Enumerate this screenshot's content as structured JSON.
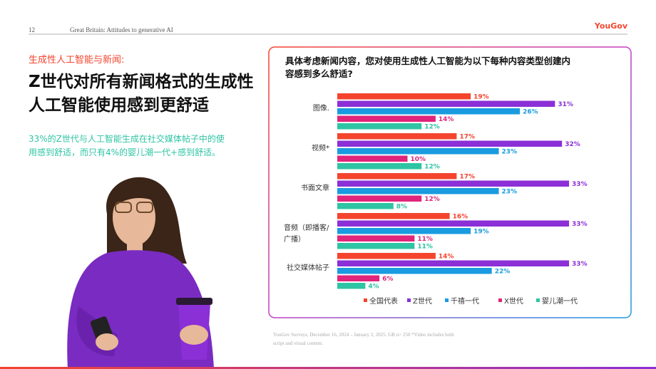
{
  "header": {
    "page": "12",
    "section": "Great Britain: Attitudes to generative AI",
    "logo": "YouGov"
  },
  "left": {
    "kicker": "生成性人工智能与新闻:",
    "title_lines": [
      "Z世代对所有新闻格式的生成性",
      "人工智能使用感到更舒适"
    ],
    "body_lines": [
      "33%的Z世代与人工智能生成在社交媒体帖子中的使",
      "用感到舒适，而只有4%的婴儿潮一代+感到舒适。"
    ]
  },
  "footnote": "YouGov Surveys, December 16, 2024 – January 2, 2025. GB n> 250 *Video includes both script and visual content.",
  "chart_data": {
    "type": "hbar",
    "title_lines": [
      "具体考虑新闻内容，您对使用生成性人工智能为以下每种内容类型创建内",
      "容感到多么舒适?"
    ],
    "categories": [
      "图像.",
      "视频*",
      "书面文章",
      "音频（即播客/广播）",
      "社交媒体帖子"
    ],
    "series": [
      {
        "name": "全国代表",
        "color": "#f4442e",
        "values": [
          19,
          17,
          17,
          16,
          14
        ],
        "value_labels": [
          "19%",
          "17%",
          "17%",
          "16%",
          "14%"
        ]
      },
      {
        "name": "Z世代",
        "color": "#8b2fd6",
        "values": [
          31,
          32,
          33,
          33,
          33
        ],
        "value_labels": [
          "31%",
          "32%",
          "33%",
          "33%",
          "33%"
        ]
      },
      {
        "name": "千禧一代",
        "color": "#1a9be0",
        "values": [
          26,
          23,
          23,
          19,
          22
        ],
        "value_labels": [
          "26%",
          "23%",
          "23%",
          "19%",
          "22%"
        ]
      },
      {
        "name": "X世代",
        "color": "#e0257a",
        "values": [
          14,
          10,
          12,
          11,
          6
        ],
        "value_labels": [
          "14%",
          "10%",
          "12%",
          "11%",
          "6%"
        ]
      },
      {
        "name": "婴儿潮一代",
        "color": "#2ec4a4",
        "values": [
          12,
          12,
          8,
          11,
          4
        ],
        "value_labels": [
          "12%",
          "12%",
          "8%",
          "11%",
          "4%"
        ]
      }
    ]
  }
}
